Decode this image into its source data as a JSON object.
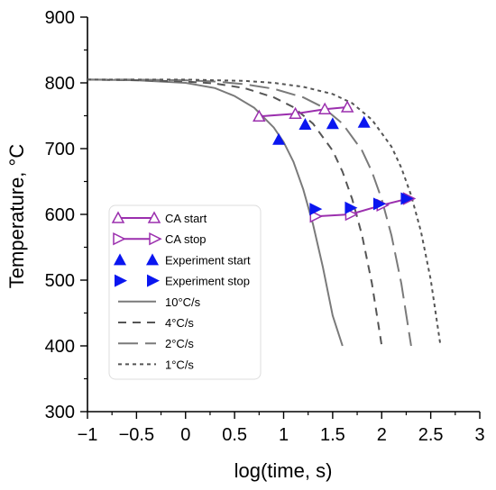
{
  "chart_data": {
    "type": "line",
    "title": "",
    "xlabel": "log(time, s)",
    "ylabel": "Temperature, °C",
    "xlim": [
      -1,
      3
    ],
    "ylim": [
      300,
      900
    ],
    "xticks": [
      -1,
      -0.5,
      0,
      0.5,
      1,
      1.5,
      2,
      2.5,
      3
    ],
    "xtick_labels": [
      "−1",
      "−0.5",
      "0",
      "0.5",
      "1",
      "1.5",
      "2",
      "2.5",
      "3"
    ],
    "yticks": [
      300,
      400,
      500,
      600,
      700,
      800,
      900
    ],
    "ytick_labels": [
      "300",
      "400",
      "500",
      "600",
      "700",
      "800",
      "900"
    ],
    "grid": false,
    "legend_position": "lower-left",
    "cooling_curves": [
      {
        "name": "10°C/s",
        "style": "solid",
        "color": "#7a7a7a",
        "x": [
          -1.0,
          -0.5,
          0.0,
          0.3,
          0.5,
          0.7,
          0.9,
          1.0,
          1.1,
          1.2,
          1.3,
          1.4,
          1.5,
          1.6
        ],
        "y": [
          805,
          804,
          800,
          792,
          780,
          762,
          732,
          710,
          680,
          638,
          585,
          520,
          446,
          400
        ]
      },
      {
        "name": "4°C/s",
        "style": "dashed",
        "color": "#555555",
        "x": [
          -1.0,
          -0.5,
          0.0,
          0.3,
          0.6,
          0.9,
          1.1,
          1.3,
          1.5,
          1.6,
          1.7,
          1.8,
          1.9,
          2.0
        ],
        "y": [
          805,
          804,
          802,
          799,
          792,
          778,
          763,
          738,
          697,
          665,
          623,
          568,
          495,
          400
        ]
      },
      {
        "name": "2°C/s",
        "style": "longdash",
        "color": "#7a7a7a",
        "x": [
          -1.0,
          -0.5,
          0.0,
          0.3,
          0.6,
          0.9,
          1.2,
          1.4,
          1.6,
          1.8,
          1.9,
          2.0,
          2.1,
          2.2,
          2.3
        ],
        "y": [
          805,
          805,
          804,
          802,
          798,
          791,
          778,
          763,
          738,
          697,
          665,
          623,
          568,
          495,
          400
        ]
      },
      {
        "name": "1°C/s",
        "style": "dotted",
        "color": "#555555",
        "x": [
          -1.0,
          -0.5,
          0.0,
          0.3,
          0.6,
          0.9,
          1.2,
          1.5,
          1.7,
          1.9,
          2.1,
          2.2,
          2.3,
          2.4,
          2.5,
          2.6
        ],
        "y": [
          805,
          805,
          805,
          804,
          803,
          800,
          794,
          783,
          769,
          744,
          703,
          671,
          629,
          574,
          501,
          400
        ]
      }
    ],
    "series": [
      {
        "name": "CA start",
        "kind": "calc-start",
        "color": "#9b2fae",
        "x": [
          0.75,
          1.12,
          1.42,
          1.65
        ],
        "y": [
          749,
          753,
          760,
          763
        ]
      },
      {
        "name": "CA stop",
        "kind": "calc-stop",
        "color": "#9b2fae",
        "x": [
          1.32,
          1.68,
          2.0,
          2.27
        ],
        "y": [
          597,
          600,
          614,
          624
        ]
      },
      {
        "name": "Experiment start",
        "kind": "exp-start",
        "color": "#0a16f0",
        "x": [
          0.95,
          1.22,
          1.5,
          1.82
        ],
        "y": [
          714,
          737,
          738,
          740
        ]
      },
      {
        "name": "Experiment stop",
        "kind": "exp-stop",
        "color": "#0a16f0",
        "x": [
          1.32,
          1.68,
          1.97,
          2.25
        ],
        "y": [
          608,
          610,
          616,
          624
        ]
      }
    ],
    "legend": [
      {
        "label": "CA start",
        "kind": "calc-start"
      },
      {
        "label": "CA stop",
        "kind": "calc-stop"
      },
      {
        "label": "Experiment start",
        "kind": "exp-start"
      },
      {
        "label": "Experiment stop",
        "kind": "exp-stop"
      },
      {
        "label": "10°C/s",
        "kind": "solid"
      },
      {
        "label": "4°C/s",
        "kind": "dashed"
      },
      {
        "label": "2°C/s",
        "kind": "longdash"
      },
      {
        "label": "1°C/s",
        "kind": "dotted"
      }
    ]
  }
}
